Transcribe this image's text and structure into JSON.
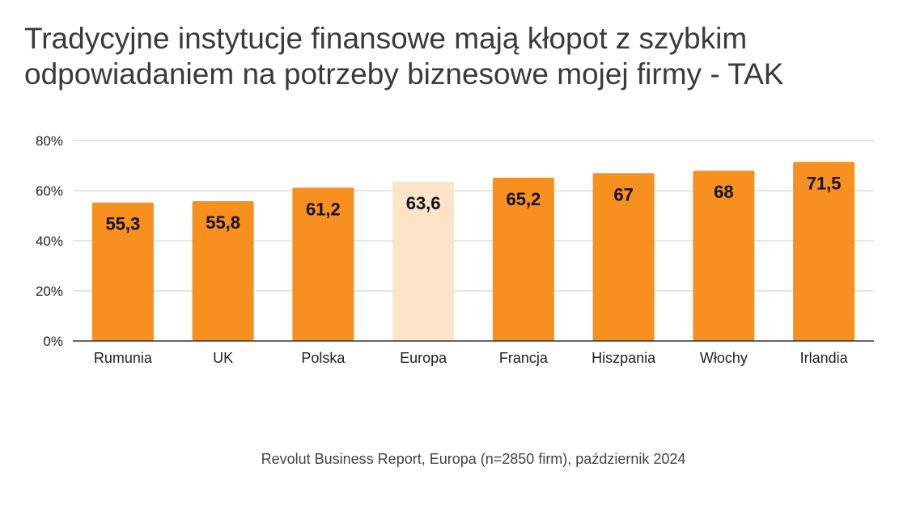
{
  "chart_data": {
    "type": "bar",
    "title": "Tradycyjne instytucje finansowe mają kłopot z szybkim odpowiadaniem na potrzeby biznesowe mojej firmy - TAK",
    "categories": [
      "Rumunia",
      "UK",
      "Polska",
      "Europa",
      "Francja",
      "Hiszpania",
      "Włochy",
      "Irlandia"
    ],
    "values": [
      55.3,
      55.8,
      61.2,
      63.6,
      65.2,
      67,
      68,
      71.5
    ],
    "value_labels": [
      "55,3",
      "55,8",
      "61,2",
      "63,6",
      "65,2",
      "67",
      "68",
      "71,5"
    ],
    "ylim": [
      0,
      80
    ],
    "yticks": [
      0,
      20,
      40,
      60,
      80
    ],
    "ytick_labels": [
      "0%",
      "20%",
      "40%",
      "60%",
      "80%"
    ],
    "xlabel": "",
    "ylabel": "",
    "grid": true,
    "legend": "none",
    "colors": {
      "bar": "#f7901e",
      "highlight_bar": "#fde3c8",
      "highlight_category": "Europa",
      "grid": "#cccccc",
      "axis": "#333333"
    }
  },
  "source_note": "Revolut Business Report, Europa (n=2850 firm), październik 2024"
}
